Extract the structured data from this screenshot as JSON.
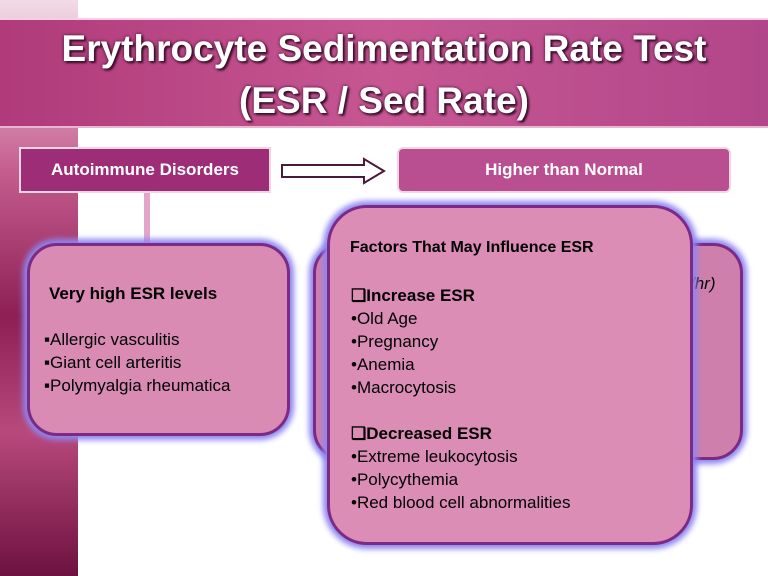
{
  "title": {
    "lines": [
      "Erythrocyte Sedimentation Rate Test",
      "(ESR / Sed Rate)"
    ]
  },
  "flow": {
    "source": "Autoimmune Disorders",
    "result": "Higher than Normal"
  },
  "left_box": {
    "heading": "Very high ESR levels",
    "items": [
      "▪Allergic vasculitis",
      "▪Giant cell arteritis",
      "▪Polymyalgia rheumatica"
    ]
  },
  "hidden_box": {
    "fragment": "/hr)"
  },
  "factors_box": {
    "heading": "Factors That May Influence ESR",
    "groups": [
      {
        "heading": "❑Increase ESR",
        "items": [
          "•Old Age",
          "•Pregnancy",
          "•Anemia",
          "•Macrocytosis"
        ]
      },
      {
        "heading": "❑Decreased ESR",
        "items": [
          "•Extreme leukocytosis",
          "•Polycythemia",
          "•Red blood cell abnormalities"
        ]
      }
    ]
  }
}
